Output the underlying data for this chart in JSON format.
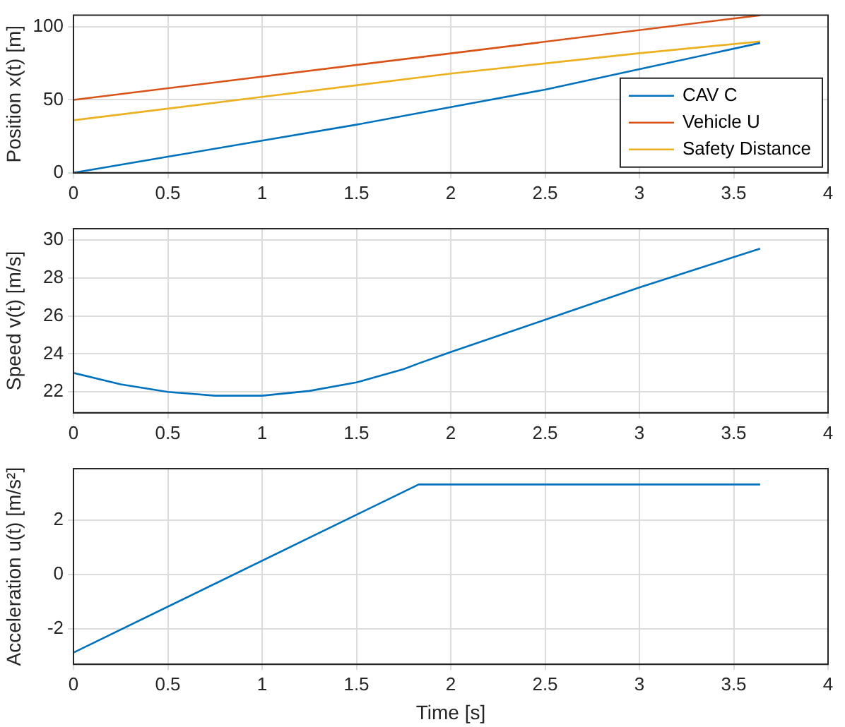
{
  "chart_data": [
    {
      "type": "line",
      "ylabel": "Position x(t) [m]",
      "xlim": [
        0,
        4
      ],
      "xticks": [
        0,
        0.5,
        1,
        1.5,
        2,
        2.5,
        3,
        3.5,
        4
      ],
      "ylim": [
        0,
        108
      ],
      "yticks": [
        0,
        50,
        100
      ],
      "grid": true,
      "legend": "bottom right",
      "series": [
        {
          "name": "CAV C",
          "color": "#0072bd",
          "x": [
            0,
            0.5,
            1,
            1.5,
            2,
            2.5,
            3,
            3.64
          ],
          "values": [
            0,
            11,
            22,
            33,
            45,
            57,
            71,
            89
          ]
        },
        {
          "name": "Vehicle U",
          "color": "#d95319",
          "x": [
            0,
            3.64
          ],
          "values": [
            50,
            108
          ]
        },
        {
          "name": "Safety Distance",
          "color": "#edb120",
          "x": [
            0,
            1,
            2,
            3,
            3.64
          ],
          "values": [
            36,
            52,
            68,
            82,
            90
          ]
        }
      ]
    },
    {
      "type": "line",
      "ylabel": "Speed v(t) [m/s]",
      "xlim": [
        0,
        4
      ],
      "xticks": [
        0,
        0.5,
        1,
        1.5,
        2,
        2.5,
        3,
        3.5,
        4
      ],
      "ylim": [
        20.9,
        30.6
      ],
      "yticks": [
        22,
        24,
        26,
        28,
        30
      ],
      "grid": true,
      "series": [
        {
          "color": "#0072bd",
          "x": [
            0,
            0.25,
            0.5,
            0.75,
            1,
            1.25,
            1.5,
            1.75,
            1.83,
            2,
            2.5,
            3,
            3.5,
            3.64
          ],
          "values": [
            23,
            22.4,
            22,
            21.8,
            21.8,
            22.05,
            22.5,
            23.2,
            23.5,
            24.1,
            25.8,
            27.5,
            29.1,
            29.55
          ]
        }
      ]
    },
    {
      "type": "line",
      "xlabel": "Time [s]",
      "ylabel": "Acceleration u(t) [m/s²]",
      "xlim": [
        0,
        4
      ],
      "xticks": [
        0,
        0.5,
        1,
        1.5,
        2,
        2.5,
        3,
        3.5,
        4
      ],
      "ylim": [
        -3.3,
        3.9
      ],
      "yticks": [
        -2,
        0,
        2
      ],
      "grid": true,
      "series": [
        {
          "color": "#0072bd",
          "x": [
            0,
            1.83,
            3.64
          ],
          "values": [
            -2.87,
            3.32,
            3.32
          ]
        }
      ]
    }
  ]
}
